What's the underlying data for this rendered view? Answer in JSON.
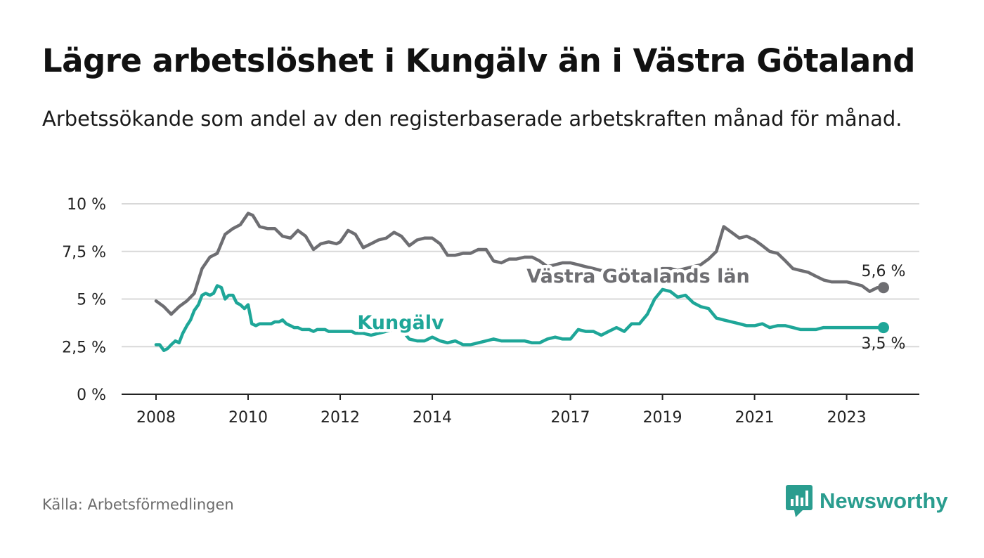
{
  "title": "Lägre arbetslöshet i Kungälv än i Västra Götaland",
  "subtitle": "Arbetssökande som andel av den registerbaserade arbetskraften månad för månad.",
  "source": "Källa: Arbetsförmedlingen",
  "brand": "Newsworthy",
  "colors": {
    "vg": "#6e6e72",
    "kungalv": "#1ea698",
    "grid": "#d8d8d8",
    "axis": "#222222",
    "brand": "#2a9d8f"
  },
  "chart_data": {
    "type": "line",
    "title": "Lägre arbetslöshet i Kungälv än i Västra Götaland",
    "xlabel": "",
    "ylabel": "",
    "xlim": [
      2008,
      2023.8
    ],
    "ylim": [
      0,
      10
    ],
    "y_ticks": [
      0,
      2.5,
      5,
      7.5,
      10
    ],
    "y_tick_labels": [
      "0 %",
      "2,5 %",
      "5 %",
      "7,5 %",
      "10 %"
    ],
    "x_ticks": [
      2008,
      2010,
      2012,
      2014,
      2017,
      2019,
      2021,
      2023
    ],
    "x_tick_labels": [
      "2008",
      "2010",
      "2012",
      "2014",
      "2017",
      "2019",
      "2021",
      "2023"
    ],
    "grid": true,
    "series": [
      {
        "name": "Västra Götalands län",
        "end_label": "5,6 %",
        "x": [
          2008.0,
          2008.17,
          2008.33,
          2008.5,
          2008.67,
          2008.83,
          2009.0,
          2009.17,
          2009.33,
          2009.5,
          2009.67,
          2009.83,
          2010.0,
          2010.1,
          2010.25,
          2010.42,
          2010.58,
          2010.75,
          2010.92,
          2011.08,
          2011.25,
          2011.42,
          2011.58,
          2011.75,
          2011.92,
          2012.0,
          2012.17,
          2012.33,
          2012.5,
          2012.67,
          2012.83,
          2013.0,
          2013.17,
          2013.33,
          2013.5,
          2013.67,
          2013.83,
          2014.0,
          2014.17,
          2014.33,
          2014.5,
          2014.67,
          2014.83,
          2015.0,
          2015.17,
          2015.33,
          2015.5,
          2015.67,
          2015.83,
          2016.0,
          2016.17,
          2016.33,
          2016.5,
          2016.67,
          2016.83,
          2017.0,
          2017.17,
          2017.33,
          2017.5,
          2017.67,
          2017.83,
          2018.0,
          2018.17,
          2018.33,
          2018.5,
          2018.67,
          2018.83,
          2019.0,
          2019.17,
          2019.33,
          2019.5,
          2019.67,
          2019.83,
          2020.0,
          2020.17,
          2020.33,
          2020.5,
          2020.67,
          2020.83,
          2021.0,
          2021.17,
          2021.33,
          2021.5,
          2021.67,
          2021.83,
          2022.0,
          2022.17,
          2022.33,
          2022.5,
          2022.67,
          2022.83,
          2023.0,
          2023.17,
          2023.33,
          2023.5,
          2023.67,
          2023.8
        ],
        "y": [
          4.9,
          4.6,
          4.2,
          4.6,
          4.9,
          5.3,
          6.6,
          7.2,
          7.4,
          8.4,
          8.7,
          8.9,
          9.5,
          9.4,
          8.8,
          8.7,
          8.7,
          8.3,
          8.2,
          8.6,
          8.3,
          7.6,
          7.9,
          8.0,
          7.9,
          8.0,
          8.6,
          8.4,
          7.7,
          7.9,
          8.1,
          8.2,
          8.5,
          8.3,
          7.8,
          8.1,
          8.2,
          8.2,
          7.9,
          7.3,
          7.3,
          7.4,
          7.4,
          7.6,
          7.6,
          7.0,
          6.9,
          7.1,
          7.1,
          7.2,
          7.2,
          7.0,
          6.7,
          6.8,
          6.9,
          6.9,
          6.8,
          6.7,
          6.6,
          6.5,
          6.5,
          6.5,
          6.5,
          6.4,
          6.4,
          6.4,
          6.5,
          6.6,
          6.6,
          6.5,
          6.6,
          6.7,
          6.8,
          7.1,
          7.5,
          8.8,
          8.5,
          8.2,
          8.3,
          8.1,
          7.8,
          7.5,
          7.4,
          7.0,
          6.6,
          6.5,
          6.4,
          6.2,
          6.0,
          5.9,
          5.9,
          5.9,
          5.8,
          5.7,
          5.4,
          5.6,
          5.6
        ]
      },
      {
        "name": "Kungälv",
        "end_label": "3,5 %",
        "x": [
          2008.0,
          2008.08,
          2008.17,
          2008.25,
          2008.33,
          2008.42,
          2008.5,
          2008.58,
          2008.67,
          2008.75,
          2008.83,
          2008.92,
          2009.0,
          2009.08,
          2009.17,
          2009.25,
          2009.33,
          2009.42,
          2009.5,
          2009.58,
          2009.67,
          2009.75,
          2009.83,
          2009.92,
          2010.0,
          2010.08,
          2010.17,
          2010.25,
          2010.33,
          2010.42,
          2010.5,
          2010.58,
          2010.67,
          2010.75,
          2010.83,
          2010.92,
          2011.0,
          2011.08,
          2011.17,
          2011.25,
          2011.33,
          2011.42,
          2011.5,
          2011.58,
          2011.67,
          2011.75,
          2011.83,
          2011.92,
          2012.0,
          2012.08,
          2012.17,
          2012.25,
          2012.33,
          2012.5,
          2012.67,
          2012.83,
          2013.0,
          2013.17,
          2013.33,
          2013.5,
          2013.67,
          2013.83,
          2014.0,
          2014.17,
          2014.33,
          2014.5,
          2014.67,
          2014.83,
          2015.0,
          2015.17,
          2015.33,
          2015.5,
          2015.67,
          2015.83,
          2016.0,
          2016.17,
          2016.33,
          2016.5,
          2016.67,
          2016.83,
          2017.0,
          2017.17,
          2017.33,
          2017.5,
          2017.67,
          2017.83,
          2018.0,
          2018.17,
          2018.33,
          2018.5,
          2018.67,
          2018.83,
          2019.0,
          2019.17,
          2019.33,
          2019.5,
          2019.67,
          2019.83,
          2020.0,
          2020.17,
          2020.33,
          2020.5,
          2020.67,
          2020.83,
          2021.0,
          2021.17,
          2021.33,
          2021.5,
          2021.67,
          2021.83,
          2022.0,
          2022.17,
          2022.33,
          2022.5,
          2022.67,
          2022.83,
          2023.0,
          2023.17,
          2023.33,
          2023.5,
          2023.67,
          2023.8
        ],
        "y": [
          2.6,
          2.6,
          2.3,
          2.4,
          2.6,
          2.8,
          2.7,
          3.2,
          3.6,
          3.9,
          4.4,
          4.7,
          5.2,
          5.3,
          5.2,
          5.3,
          5.7,
          5.6,
          5.0,
          5.2,
          5.2,
          4.8,
          4.7,
          4.5,
          4.7,
          3.7,
          3.6,
          3.7,
          3.7,
          3.7,
          3.7,
          3.8,
          3.8,
          3.9,
          3.7,
          3.6,
          3.5,
          3.5,
          3.4,
          3.4,
          3.4,
          3.3,
          3.4,
          3.4,
          3.4,
          3.3,
          3.3,
          3.3,
          3.3,
          3.3,
          3.3,
          3.3,
          3.2,
          3.2,
          3.1,
          3.2,
          3.3,
          3.4,
          3.4,
          2.9,
          2.8,
          2.8,
          3.0,
          2.8,
          2.7,
          2.8,
          2.6,
          2.6,
          2.7,
          2.8,
          2.9,
          2.8,
          2.8,
          2.8,
          2.8,
          2.7,
          2.7,
          2.9,
          3.0,
          2.9,
          2.9,
          3.4,
          3.3,
          3.3,
          3.1,
          3.3,
          3.5,
          3.3,
          3.7,
          3.7,
          4.2,
          5.0,
          5.5,
          5.4,
          5.1,
          5.2,
          4.8,
          4.6,
          4.5,
          4.0,
          3.9,
          3.8,
          3.7,
          3.6,
          3.6,
          3.7,
          3.5,
          3.6,
          3.6,
          3.5,
          3.4,
          3.4,
          3.4,
          3.5,
          3.5,
          3.5,
          3.5,
          3.5,
          3.5,
          3.5,
          3.5,
          3.5
        ]
      }
    ]
  }
}
